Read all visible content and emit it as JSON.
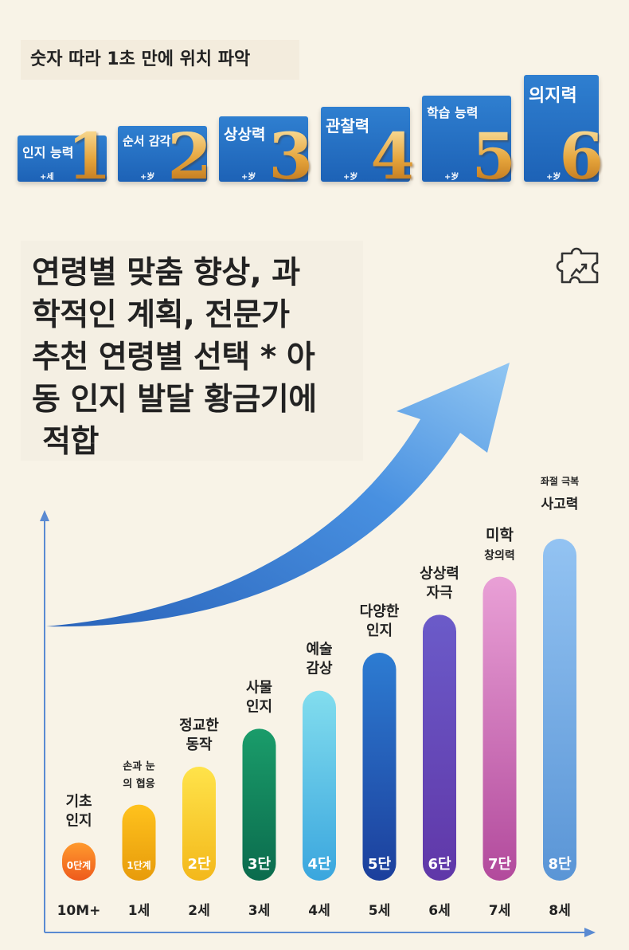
{
  "header": {
    "title": "숫자 따라 1초 만에 위치 파악"
  },
  "cards": [
    {
      "label": "인지 능력",
      "number": "1",
      "age": "+세"
    },
    {
      "label": "순서 감각",
      "number": "2",
      "age": "+岁"
    },
    {
      "label": "상상력",
      "number": "3",
      "age": "+岁"
    },
    {
      "label": "관찰력",
      "number": "4",
      "age": "+岁"
    },
    {
      "label": "학습 능력",
      "number": "5",
      "age": "+岁"
    },
    {
      "label": "의지력",
      "number": "6",
      "age": "+岁"
    }
  ],
  "headline": {
    "lines": [
      "연령별 맞춤 향상, 과",
      "학적인 계획, 전문가",
      "추천 연령별 선택 * 아",
      "동 인지 발달 황금기에",
      " 적합"
    ]
  },
  "icons": {
    "puzzle": "puzzle-icon"
  },
  "chart_data": {
    "type": "bar",
    "title": "",
    "xlabel": "",
    "ylabel": "",
    "categories": [
      "10M+",
      "1세",
      "2세",
      "3세",
      "4세",
      "5세",
      "6세",
      "7세",
      "8세"
    ],
    "values": [
      1,
      2,
      3,
      4,
      5,
      6,
      7,
      8,
      9
    ],
    "ylim": [
      0,
      9.7
    ],
    "step_labels": [
      "0단계",
      "1단계",
      "2단",
      "3단",
      "4단",
      "5단",
      "6단",
      "7단",
      "8단"
    ],
    "bar_labels": [
      [
        "기초",
        "인지"
      ],
      [
        "손과 눈",
        "의 협응"
      ],
      [
        "정교한",
        "동작"
      ],
      [
        "사물",
        "인지"
      ],
      [
        "예술",
        "감상"
      ],
      [
        "다양한",
        "인지"
      ],
      [
        "상상력",
        "자극"
      ],
      [
        "미학",
        "창의력"
      ],
      [
        "좌절 극복",
        "사고력"
      ]
    ],
    "colors": [
      [
        "#ff9a2e",
        "#ee5a1c"
      ],
      [
        "#ffc21d",
        "#e79b0b"
      ],
      [
        "#ffe34a",
        "#f3b81b"
      ],
      [
        "#1a9c6a",
        "#0b6b4d"
      ],
      [
        "#82ddee",
        "#3aa6de"
      ],
      [
        "#2d7cd2",
        "#1c3f9c"
      ],
      [
        "#6b5bc9",
        "#6037a8"
      ],
      [
        "#e9a0d6",
        "#b24a9c"
      ],
      [
        "#93c3f2",
        "#5a95d6"
      ]
    ],
    "grid": false,
    "legend": "none"
  }
}
